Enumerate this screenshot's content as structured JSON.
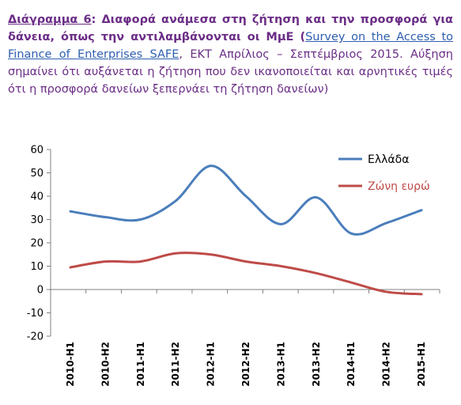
{
  "caption": {
    "label": "Διάγραμμα 6",
    "title": ": Διαφορά ανάμεσα στη ζήτηση και την προσφορά για δάνεια, όπως την αντιλαμβάνονται οι ΜμΕ (",
    "source_link": "Survey on the Access to Finance of Enterprises SAFE",
    "source_rest": ", ΕΚΤ Απρίλιος – Σεπτέμβριος 2015. Αύξηση σημαίνει ότι αυξάνεται η ζήτηση που δεν ικανοποιείται και αρνητικές τιμές ότι η προσφορά δανείων ξεπερνάει τη ζήτηση δανείων)"
  },
  "colors": {
    "greece": "#4a7ebb",
    "eurozone": "#be4b48",
    "axis": "#808080"
  },
  "chart_data": {
    "type": "line",
    "categories": [
      "2010-H1",
      "2010-H2",
      "2011-H1",
      "2011-H2",
      "2012-H1",
      "2012-H2",
      "2013-H1",
      "2013-H2",
      "2014-H1",
      "2014-H2",
      "2015-H1"
    ],
    "ylim": [
      -20,
      60
    ],
    "yticks": [
      "60",
      "50",
      "40",
      "30",
      "20",
      "10",
      "0",
      "-10",
      "-20"
    ],
    "legend_position": "top-right",
    "series": [
      {
        "name": "Ελλάδα",
        "values": [
          33.5,
          31,
          30,
          38,
          53,
          40,
          28,
          39.5,
          24,
          28.5,
          34
        ]
      },
      {
        "name": "Ζώνη ευρώ",
        "values": [
          9.5,
          12,
          12,
          15.5,
          15,
          12,
          10,
          7,
          3,
          -1,
          -2
        ]
      }
    ]
  }
}
